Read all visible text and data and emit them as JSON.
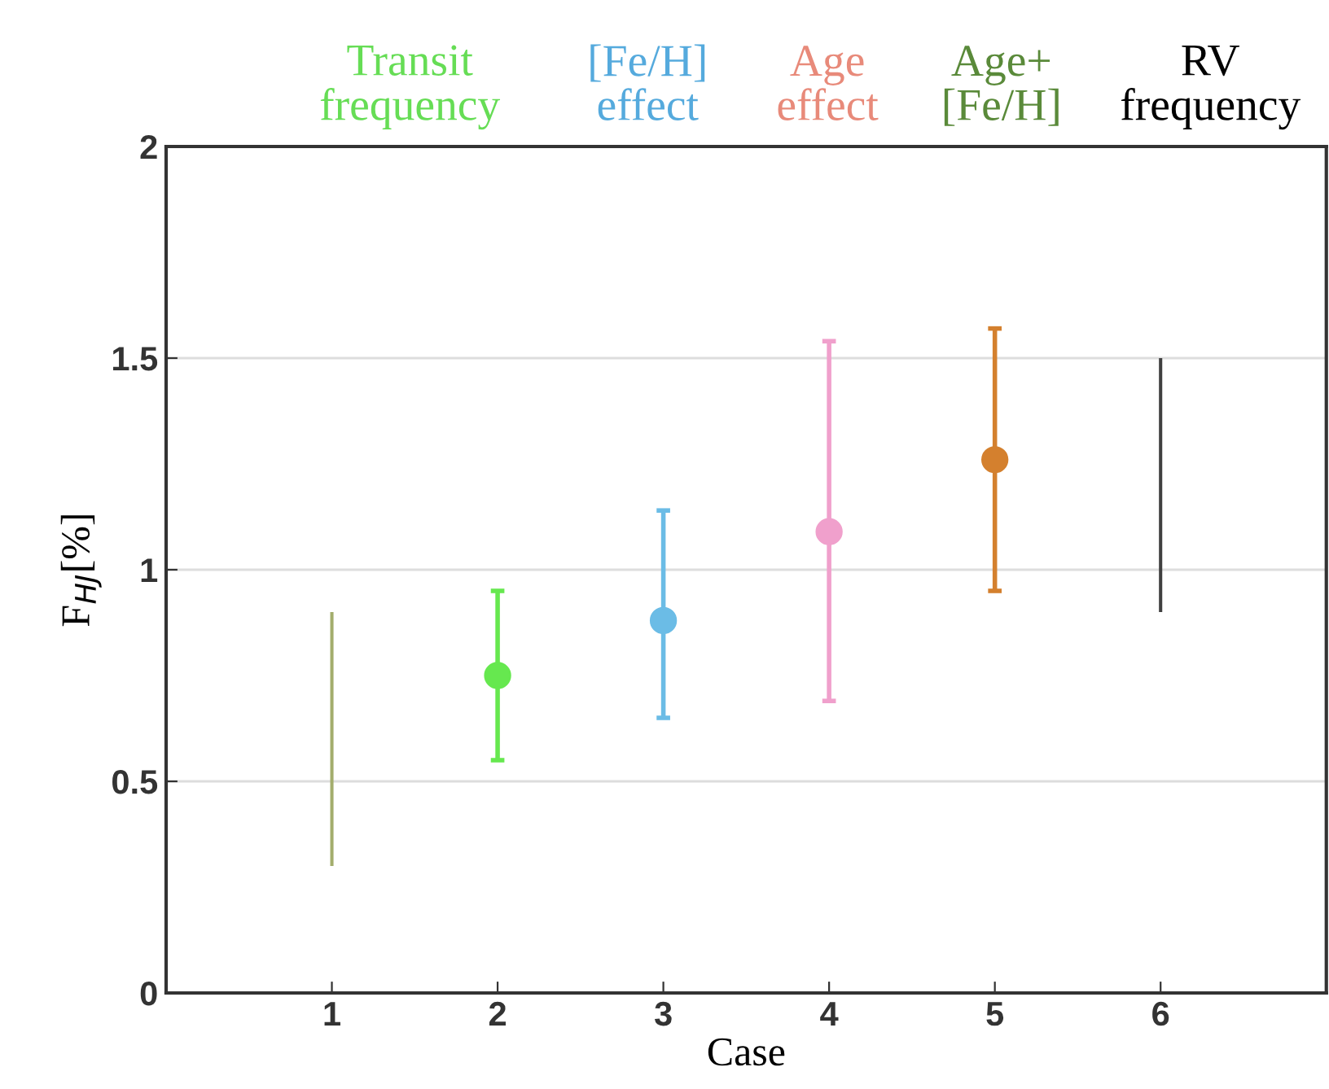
{
  "chart_data": {
    "type": "scatter",
    "xlabel": "Case",
    "ylabel": "F$_{HJ}$[%]",
    "xlim": [
      0,
      7
    ],
    "xticks": [
      1,
      2,
      3,
      4,
      5,
      6
    ],
    "ylim": [
      0,
      2
    ],
    "yticks": [
      0,
      0.5,
      1,
      1.5,
      2
    ],
    "grid": "y",
    "marker": "circle",
    "series": [
      {
        "type": "bar",
        "x": [
          1,
          6
        ],
        "base": [
          0.3,
          0.9
        ],
        "values": [
          0.6,
          0.6
        ],
        "colors": [
          "#a3ad6c",
          "#404040"
        ]
      },
      {
        "x": [
          2,
          3,
          4,
          5
        ],
        "values": [
          0.75,
          0.88,
          1.09,
          1.26
        ],
        "errors": [
          [
            0.55,
            0.95
          ],
          [
            0.65,
            1.14
          ],
          [
            0.69,
            1.54
          ],
          [
            0.95,
            1.57
          ]
        ],
        "colors": [
          "#66e84f",
          "#6bbce6",
          "#f0a0cc",
          "#d4802e"
        ]
      }
    ],
    "annotations": [
      "Transit\nfrequency",
      "[Fe/H]\neffect",
      "Age\neffect",
      "Age+\n[Fe/H]",
      "RV\nfrequency"
    ]
  }
}
